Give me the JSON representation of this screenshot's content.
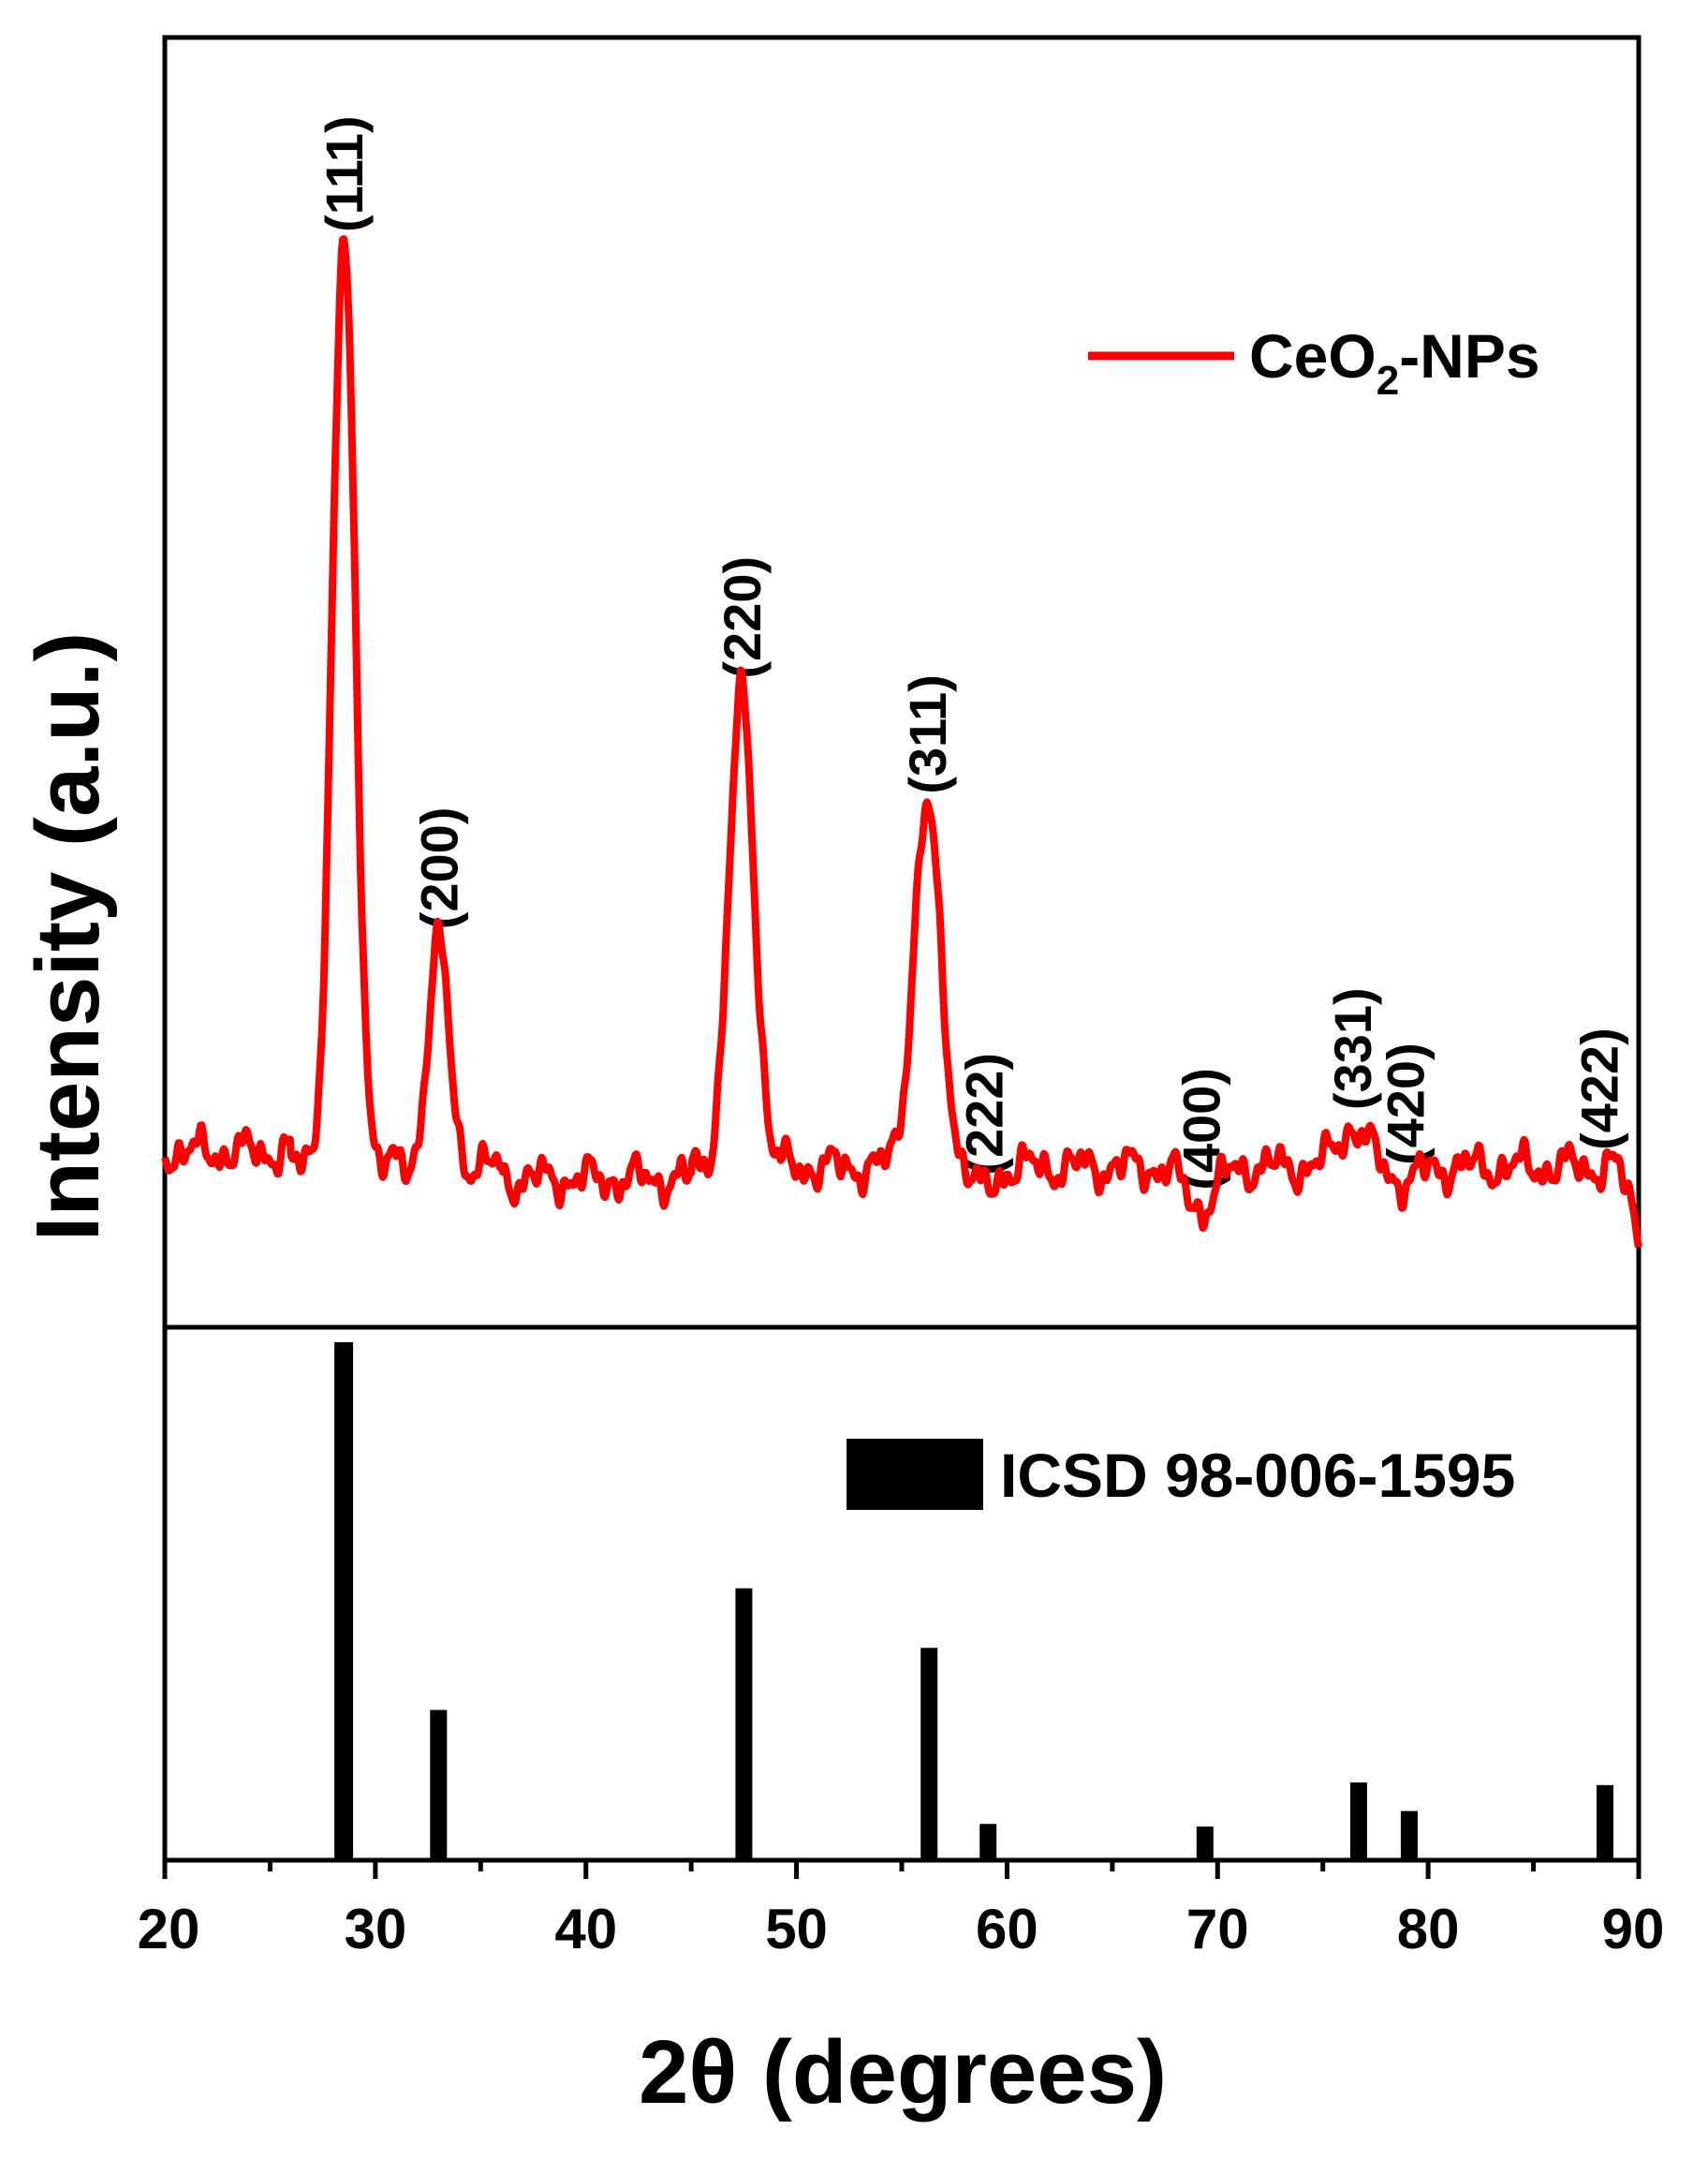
{
  "chart_data": [
    {
      "type": "line",
      "panel": "top",
      "xlim": [
        20,
        90
      ],
      "ylim": [
        0,
        1.0
      ],
      "ylabel": "Intensity (a.u.)",
      "legend": {
        "placement": "top-right",
        "label_main": "CeO",
        "label_sub": "2",
        "label_tail": "-NPs"
      },
      "series": [
        {
          "name": "CeO2-NPs",
          "color": "#ff0000",
          "baseline": 0.085,
          "peaks": [
            {
              "hkl": "(111)",
              "x": 28.5,
              "y": 1.0,
              "width": 0.55
            },
            {
              "hkl": "(200)",
              "x": 33.0,
              "y": 0.305,
              "width": 0.5
            },
            {
              "hkl": "(220)",
              "x": 47.4,
              "y": 0.555,
              "width": 0.6
            },
            {
              "hkl": "(311)",
              "x": 56.2,
              "y": 0.44,
              "width": 0.65
            },
            {
              "hkl": "(222)",
              "x": 58.9,
              "y": 0.06,
              "width": 0.5
            },
            {
              "hkl": "(400)",
              "x": 69.2,
              "y": 0.045,
              "width": 0.7
            },
            {
              "hkl": "(331)",
              "x": 76.4,
              "y": 0.125,
              "width": 0.7
            },
            {
              "hkl": "(420)",
              "x": 78.9,
              "y": 0.07,
              "width": 0.6
            },
            {
              "hkl": "(422)",
              "x": 88.1,
              "y": 0.085,
              "width": 0.7
            }
          ]
        }
      ]
    },
    {
      "type": "bar",
      "panel": "bottom",
      "xlim": [
        20,
        90
      ],
      "ylim": [
        0,
        1.0
      ],
      "xlabel": "2θ (degrees)",
      "x_ticks": [
        "20",
        "30",
        "40",
        "50",
        "60",
        "70",
        "80",
        "90"
      ],
      "legend": {
        "placement": "top-right",
        "label": "ICSD 98-006-1595"
      },
      "series": [
        {
          "name": "ICSD 98-006-1595",
          "color": "#000000",
          "x": [
            28.5,
            33.0,
            47.5,
            56.3,
            59.1,
            69.4,
            76.7,
            79.1,
            88.4
          ],
          "values": [
            1.0,
            0.29,
            0.525,
            0.41,
            0.07,
            0.065,
            0.15,
            0.095,
            0.145
          ]
        }
      ]
    }
  ]
}
